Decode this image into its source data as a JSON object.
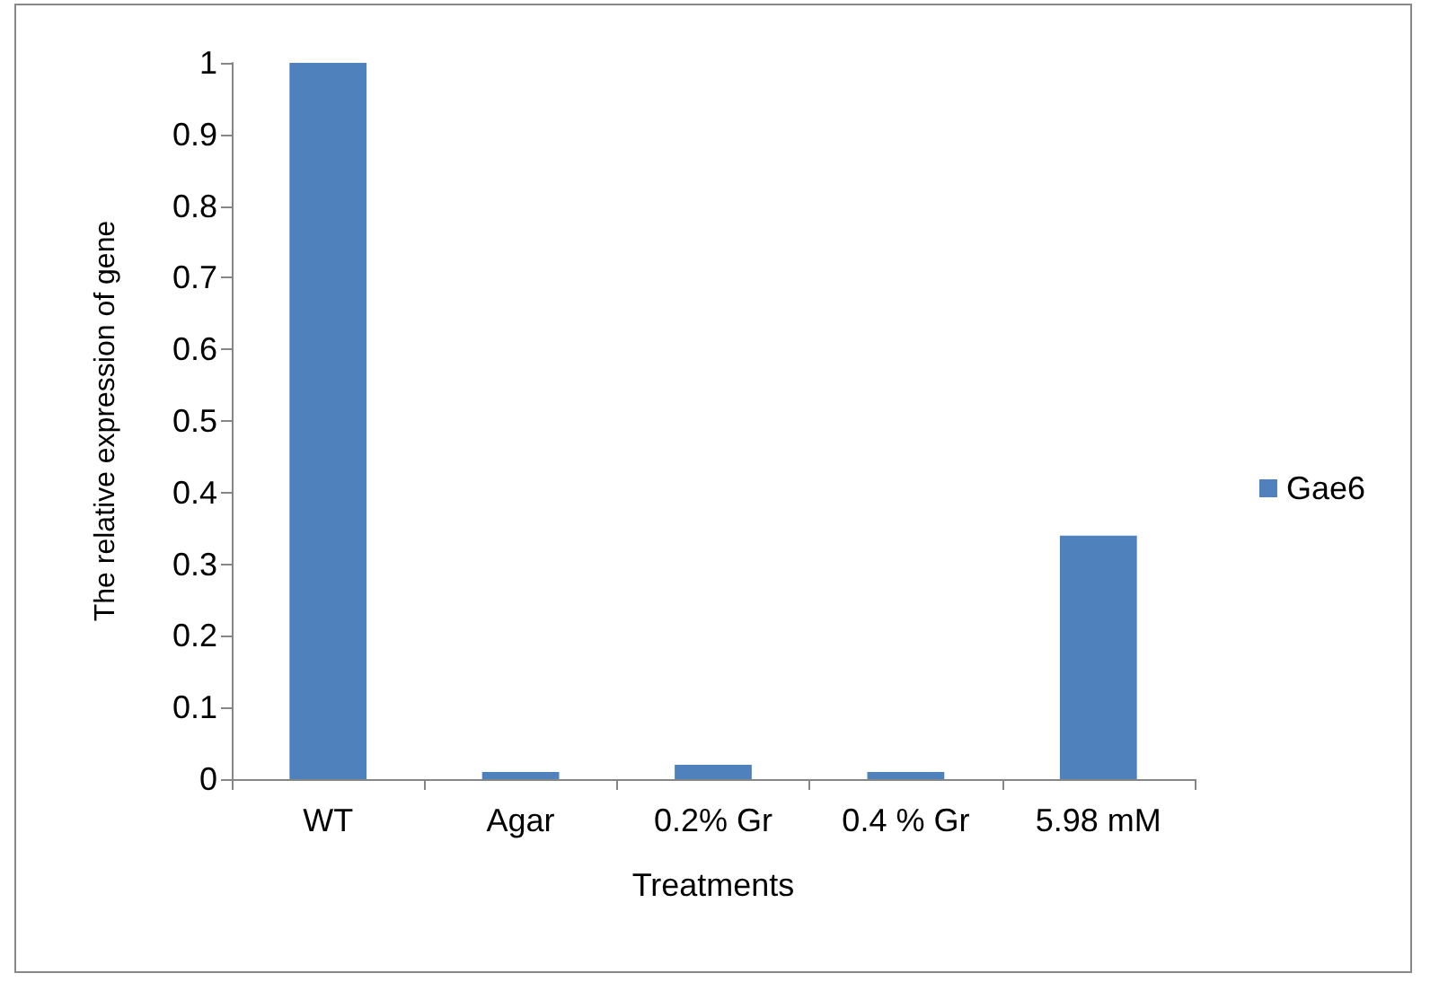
{
  "chart_data": {
    "type": "bar",
    "xlabel": "Treatments",
    "ylabel": "The relative expression of gene",
    "categories": [
      "WT",
      "Agar",
      "0.2% Gr",
      "0.4 % Gr",
      "5.98 mM"
    ],
    "series": [
      {
        "name": "Gae6",
        "color": "#4f81bd",
        "values": [
          1,
          0.01,
          0.02,
          0.01,
          0.34
        ]
      }
    ],
    "ylim": [
      0,
      1
    ],
    "yticks": [
      0,
      0.1,
      0.2,
      0.3,
      0.4,
      0.5,
      0.6,
      0.7,
      0.8,
      0.9,
      1
    ],
    "grid": false,
    "legend": "right"
  }
}
